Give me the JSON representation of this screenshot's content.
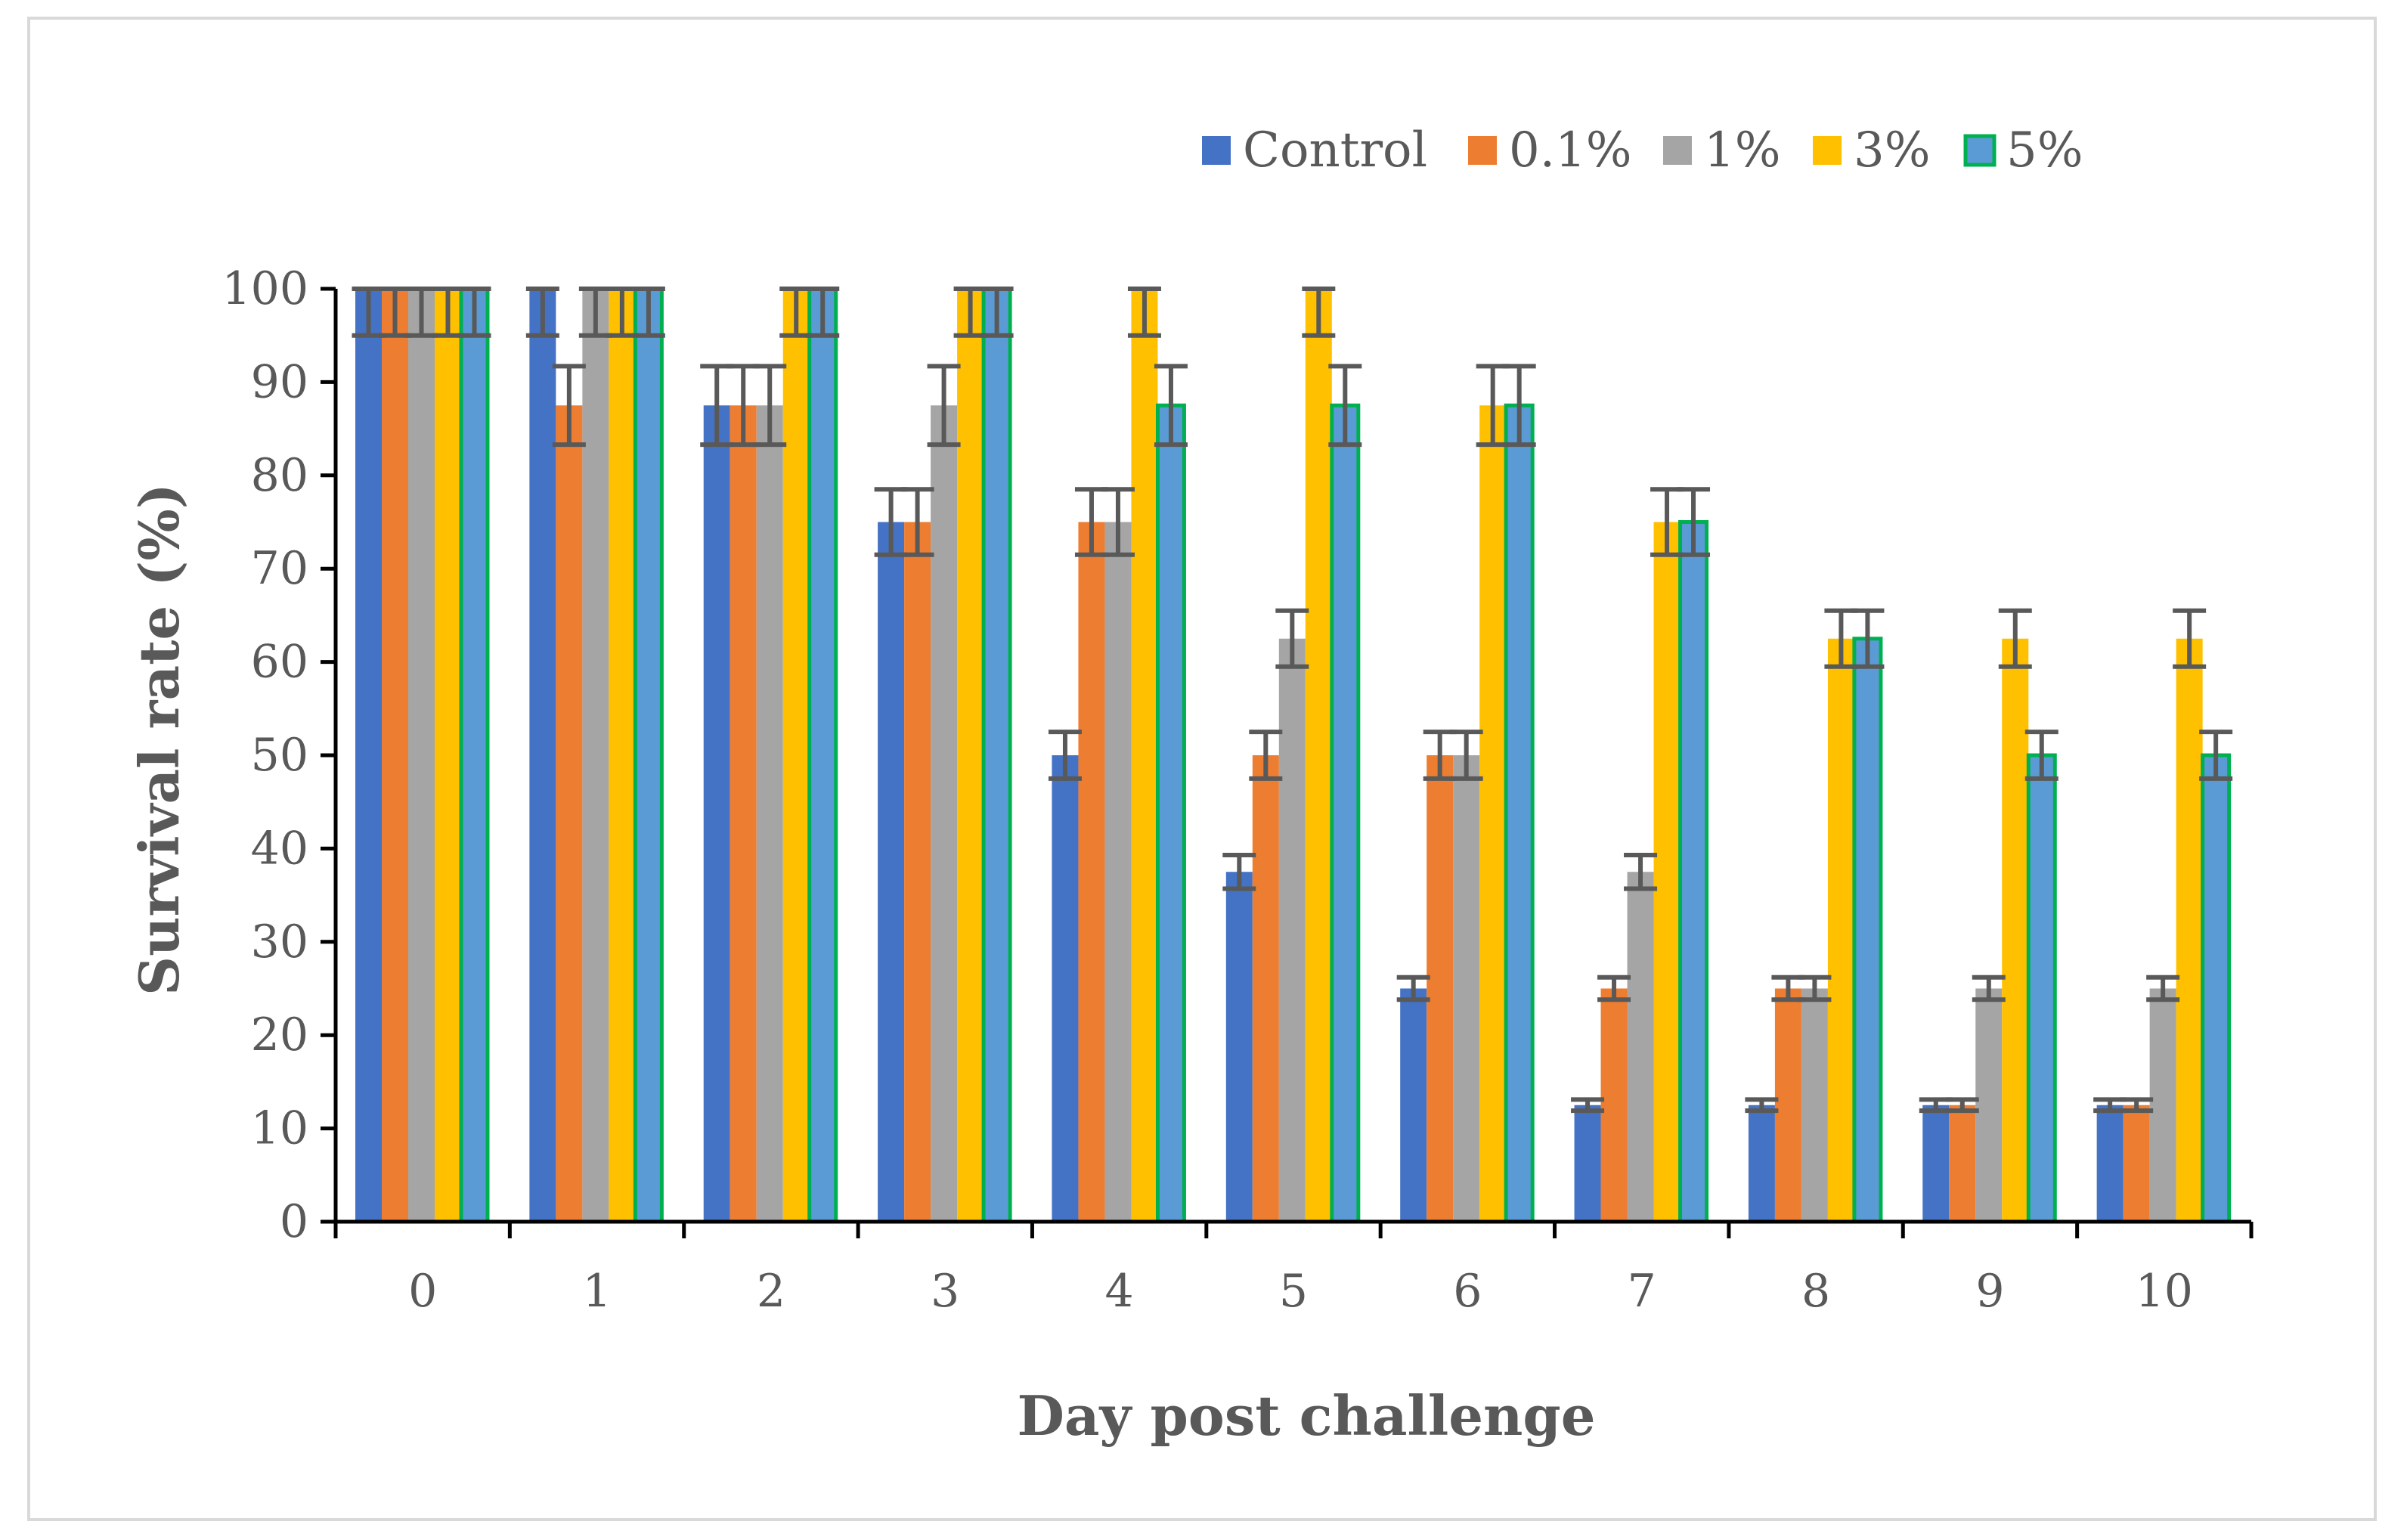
{
  "chart_data": {
    "type": "bar",
    "title": "",
    "xlabel": "Day post challenge",
    "ylabel": "Survival rate (%)",
    "ylim": [
      0,
      100
    ],
    "yticks": [
      0,
      10,
      20,
      30,
      40,
      50,
      60,
      70,
      80,
      90,
      100
    ],
    "grid": false,
    "legend_position": "top-right",
    "categories": [
      "0",
      "1",
      "2",
      "3",
      "4",
      "5",
      "6",
      "7",
      "8",
      "9",
      "10"
    ],
    "series": [
      {
        "name": "Control",
        "color": "#4472c4",
        "values": [
          100,
          100,
          87.5,
          75,
          50,
          37.5,
          25,
          12.5,
          12.5,
          12.5,
          12.5
        ],
        "errors": [
          5,
          5,
          4.2,
          3.5,
          2.5,
          1.8,
          1.2,
          0.6,
          0.6,
          0.6,
          0.6
        ]
      },
      {
        "name": "0.1%",
        "color": "#ed7d31",
        "values": [
          100,
          87.5,
          87.5,
          75,
          75,
          50,
          50,
          25,
          25,
          12.5,
          12.5
        ],
        "errors": [
          5,
          4.2,
          4.2,
          3.5,
          3.5,
          2.5,
          2.5,
          1.2,
          1.2,
          0.6,
          0.6
        ]
      },
      {
        "name": "1%",
        "color": "#a5a5a5",
        "values": [
          100,
          100,
          87.5,
          87.5,
          75,
          62.5,
          50,
          37.5,
          25,
          25,
          25
        ],
        "errors": [
          5,
          5,
          4.2,
          4.2,
          3.5,
          3,
          2.5,
          1.8,
          1.2,
          1.2,
          1.2
        ]
      },
      {
        "name": "3%",
        "color": "#ffc000",
        "values": [
          100,
          100,
          100,
          100,
          100,
          100,
          87.5,
          75,
          62.5,
          62.5,
          62.5
        ],
        "errors": [
          5,
          5,
          5,
          5,
          5,
          5,
          4.2,
          3.5,
          3,
          3,
          3
        ]
      },
      {
        "name": "5%",
        "color": "#5b9bd5",
        "outline": "#00b050",
        "values": [
          100,
          100,
          100,
          100,
          87.5,
          87.5,
          87.5,
          75,
          62.5,
          50,
          50
        ],
        "errors": [
          5,
          5,
          5,
          5,
          4.2,
          4.2,
          4.2,
          3.5,
          3,
          2.5,
          2.5
        ]
      }
    ]
  }
}
